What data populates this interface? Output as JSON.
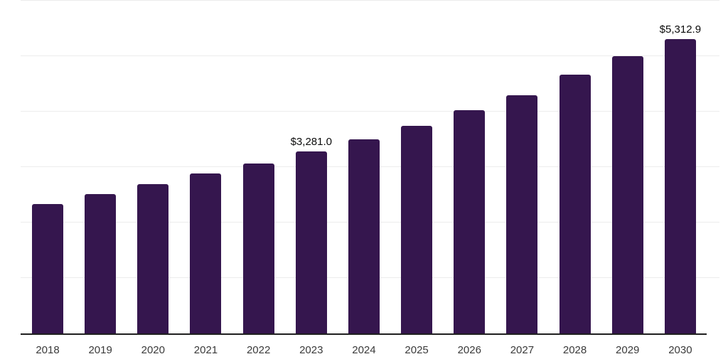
{
  "chart_data": {
    "type": "bar",
    "categories": [
      "2018",
      "2019",
      "2020",
      "2021",
      "2022",
      "2023",
      "2024",
      "2025",
      "2026",
      "2027",
      "2028",
      "2029",
      "2030"
    ],
    "values": [
      2340,
      2510,
      2690,
      2880,
      3070,
      3281.0,
      3500,
      3745,
      4020,
      4300,
      4670,
      4995,
      5312.9
    ],
    "data_labels": {
      "2023": "$3,281.0",
      "2030": "$5,312.9"
    },
    "title": "",
    "xlabel": "",
    "ylabel": "",
    "ylim": [
      0,
      6000
    ],
    "gridline_step": 1000,
    "grid": "horizontal",
    "legend_visible": false,
    "y_tick_labels_visible": false,
    "colors": {
      "bar": "#35164E",
      "gridline": "#ececec",
      "axis_line": "#1f1f1f",
      "value_label": "#0b0b0b",
      "tick_label": "#3a3a3a",
      "background": "#ffffff"
    }
  }
}
